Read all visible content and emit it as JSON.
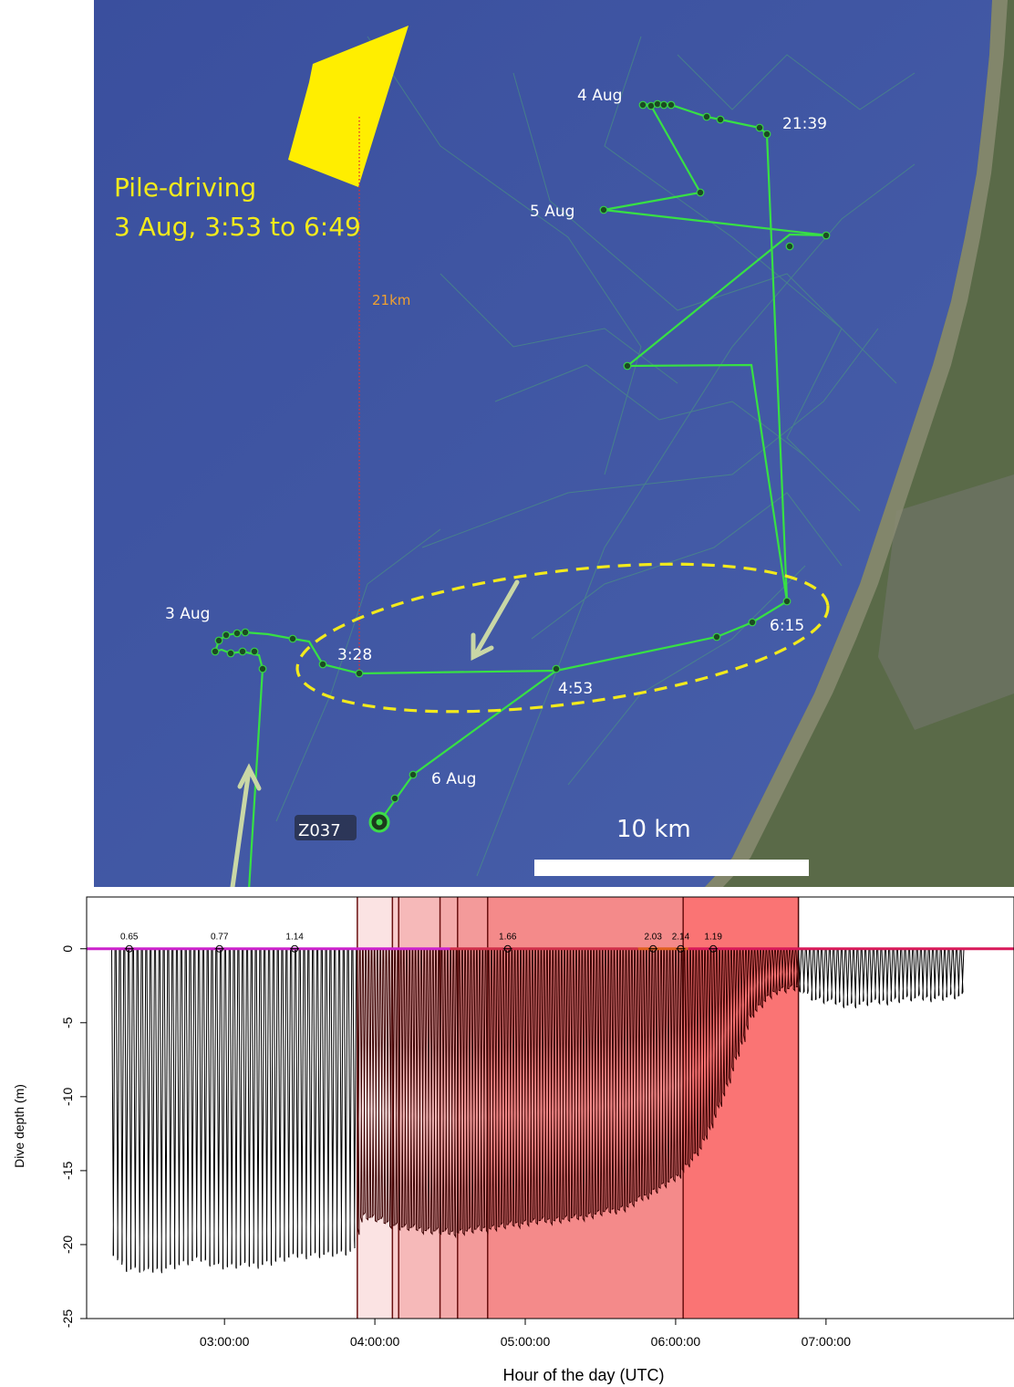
{
  "map": {
    "pile_driving_title": "Pile-driving",
    "pile_driving_time": "3 Aug, 3:53 to 6:49",
    "distance_label": "21km",
    "scale_label": "10 km",
    "animal_id": "Z037",
    "colors": {
      "sea": "#3f54a3",
      "land": "#5b6b4a",
      "track": "#3ddc4b",
      "pile_area": "#ffee00",
      "ellipse": "#f2ea1c"
    },
    "labels": [
      {
        "id": "4aug",
        "text": "4 Aug"
      },
      {
        "id": "2139",
        "text": "21:39"
      },
      {
        "id": "5aug",
        "text": "5 Aug"
      },
      {
        "id": "3aug",
        "text": "3 Aug"
      },
      {
        "id": "328",
        "text": "3:28"
      },
      {
        "id": "453",
        "text": "4:53"
      },
      {
        "id": "615",
        "text": "6:15"
      },
      {
        "id": "6aug",
        "text": "6 Aug"
      }
    ]
  },
  "chart_data": {
    "type": "line",
    "xlabel": "Hour of the day (UTC)",
    "ylabel": "Dive depth (m)",
    "xlim": [
      "02:05:00",
      "08:15:00"
    ],
    "ylim": [
      -25,
      3.5
    ],
    "xticks": [
      "03:00:00",
      "04:00:00",
      "05:00:00",
      "06:00:00",
      "07:00:00"
    ],
    "yticks": [
      0,
      -5,
      -10,
      -15,
      -20,
      -25
    ],
    "shaded_periods": [
      {
        "start": "03:53:00",
        "end": "04:07:00",
        "color": "#fbe3e3"
      },
      {
        "start": "04:07:00",
        "end": "04:09:30",
        "color": "#f8cccc"
      },
      {
        "start": "04:09:30",
        "end": "04:26:00",
        "color": "#f6b9b9"
      },
      {
        "start": "04:26:00",
        "end": "04:33:00",
        "color": "#f4aaaa"
      },
      {
        "start": "04:33:00",
        "end": "04:45:00",
        "color": "#f39a9a"
      },
      {
        "start": "04:45:00",
        "end": "06:03:00",
        "color": "#f48a8a"
      },
      {
        "start": "06:03:00",
        "end": "06:49:00",
        "color": "#fa7474"
      }
    ],
    "speed_markers": [
      {
        "time": "02:22:00",
        "value": "0.65"
      },
      {
        "time": "02:58:00",
        "value": "0.77"
      },
      {
        "time": "03:28:00",
        "value": "1.14"
      },
      {
        "time": "04:53:00",
        "value": "1.66"
      },
      {
        "time": "05:51:00",
        "value": "2.03"
      },
      {
        "time": "06:02:00",
        "value": "2.14"
      },
      {
        "time": "06:15:00",
        "value": "1.19"
      }
    ],
    "depth_envelope": [
      {
        "time": "02:15:00",
        "depth": -20.4
      },
      {
        "time": "02:20:00",
        "depth": -21.6
      },
      {
        "time": "02:30:00",
        "depth": -21.8
      },
      {
        "time": "02:40:00",
        "depth": -21.4
      },
      {
        "time": "02:50:00",
        "depth": -21.0
      },
      {
        "time": "03:00:00",
        "depth": -21.5
      },
      {
        "time": "03:15:00",
        "depth": -21.3
      },
      {
        "time": "03:30:00",
        "depth": -20.7
      },
      {
        "time": "03:50:00",
        "depth": -20.6
      },
      {
        "time": "03:55:00",
        "depth": -18.0
      },
      {
        "time": "04:10:00",
        "depth": -18.8
      },
      {
        "time": "04:30:00",
        "depth": -19.2
      },
      {
        "time": "04:45:00",
        "depth": -18.9
      },
      {
        "time": "05:00:00",
        "depth": -18.5
      },
      {
        "time": "05:20:00",
        "depth": -18.2
      },
      {
        "time": "05:40:00",
        "depth": -17.5
      },
      {
        "time": "06:00:00",
        "depth": -15.5
      },
      {
        "time": "06:10:00",
        "depth": -13.5
      },
      {
        "time": "06:20:00",
        "depth": -9.5
      },
      {
        "time": "06:30:00",
        "depth": -4.5
      },
      {
        "time": "06:40:00",
        "depth": -2.8
      },
      {
        "time": "06:49:00",
        "depth": -2.6
      },
      {
        "time": "06:55:00",
        "depth": -3.4
      },
      {
        "time": "07:10:00",
        "depth": -3.8
      },
      {
        "time": "07:30:00",
        "depth": -3.4
      },
      {
        "time": "07:55:00",
        "depth": -3.2
      }
    ]
  }
}
